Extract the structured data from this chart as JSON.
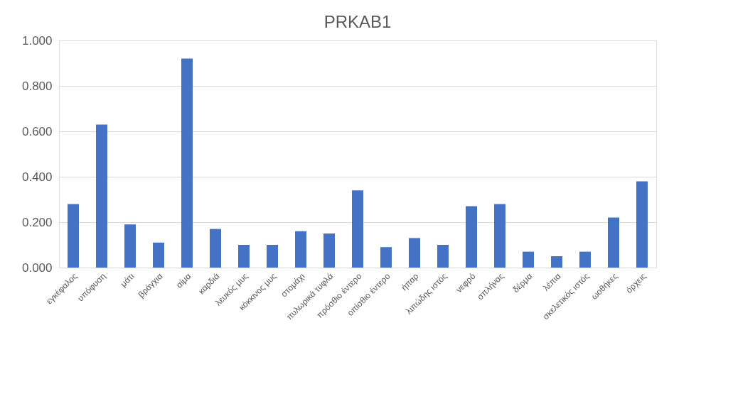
{
  "chart_data": {
    "type": "bar",
    "title": "PRKAB1",
    "categories": [
      "εγκέφαλος",
      "υπόφυση",
      "μάτι",
      "βράγχια",
      "αίμα",
      "καρδιά",
      "λευκός μυς",
      "κόκκινος μυς",
      "στομάχι",
      "πυλωρικά τυφλά",
      "πρόσθιο έντερο",
      "οπίσθιο έντερο",
      "ήπαρ",
      "λιπώδης ιστός",
      "νεφρό",
      "σπλήνας",
      "δέρμα",
      "λέπια",
      "σκελετικός ιστός",
      "ωοθήκες",
      "όρχεις"
    ],
    "values": [
      0.28,
      0.63,
      0.19,
      0.11,
      0.92,
      0.17,
      0.1,
      0.1,
      0.16,
      0.15,
      0.34,
      0.09,
      0.13,
      0.1,
      0.27,
      0.28,
      0.07,
      0.05,
      0.07,
      0.22,
      0.38
    ],
    "color": "#4472c4",
    "ylim": [
      0,
      1
    ],
    "yticks": [
      {
        "value": 0,
        "label": "0.000"
      },
      {
        "value": 0.2,
        "label": "0.200"
      },
      {
        "value": 0.4,
        "label": "0.400"
      },
      {
        "value": 0.6,
        "label": "0.600"
      },
      {
        "value": 0.8,
        "label": "0.800"
      },
      {
        "value": 1,
        "label": "1.000"
      }
    ],
    "grid": "y"
  }
}
